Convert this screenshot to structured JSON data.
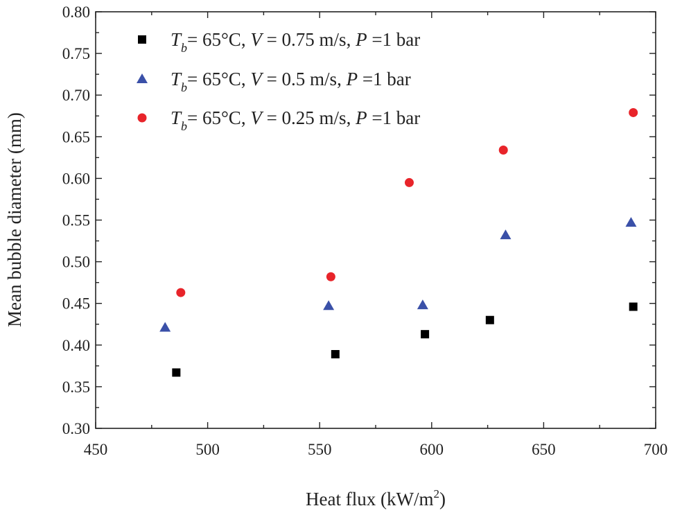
{
  "chart_data": {
    "type": "scatter",
    "xlabel": "Heat flux (kW/m",
    "xlabel_sup": "2",
    "xlabel_close": ")",
    "ylabel": "Mean bubble diameter (mm)",
    "xlim": [
      450,
      700
    ],
    "ylim": [
      0.3,
      0.8
    ],
    "x_ticks": [
      450,
      500,
      550,
      600,
      650,
      700
    ],
    "x_tick_labels": [
      "450",
      "500",
      "550",
      "600",
      "650",
      "700"
    ],
    "y_ticks": [
      0.3,
      0.35,
      0.4,
      0.45,
      0.5,
      0.55,
      0.6,
      0.65,
      0.7,
      0.75,
      0.8
    ],
    "y_tick_labels": [
      "0.30",
      "0.35",
      "0.40",
      "0.45",
      "0.50",
      "0.55",
      "0.60",
      "0.65",
      "0.70",
      "0.75",
      "0.80"
    ],
    "legend_position": "top-left",
    "series": [
      {
        "name": "T_b = 65°C, V = 0.75 m/s, P = 1 bar",
        "legend": {
          "var1": "T",
          "sub": "b",
          "part1": "= 65°C, ",
          "var2": "V",
          "part2": " = 0.75 m/s, ",
          "var3": "P",
          "part3": " =1 bar"
        },
        "marker": "square",
        "color": "#000000",
        "points": [
          [
            486,
            0.367
          ],
          [
            557,
            0.389
          ],
          [
            597,
            0.413
          ],
          [
            626,
            0.43
          ],
          [
            690,
            0.446
          ]
        ]
      },
      {
        "name": "T_b = 65°C, V = 0.5 m/s, P = 1 bar",
        "legend": {
          "var1": "T",
          "sub": "b",
          "part1": "= 65°C, ",
          "var2": "V",
          "part2": " = 0.5 m/s, ",
          "var3": "P",
          "part3": " =1 bar"
        },
        "marker": "triangle",
        "color": "#3a50a8",
        "points": [
          [
            481,
            0.421
          ],
          [
            554,
            0.447
          ],
          [
            596,
            0.448
          ],
          [
            633,
            0.532
          ],
          [
            689,
            0.547
          ]
        ]
      },
      {
        "name": "T_b = 65°C, V = 0.25 m/s, P = 1 bar",
        "legend": {
          "var1": "T",
          "sub": "b",
          "part1": "= 65°C, ",
          "var2": "V",
          "part2": " = 0.25 m/s, ",
          "var3": "P",
          "part3": " =1 bar"
        },
        "marker": "circle",
        "color": "#e8242a",
        "points": [
          [
            488,
            0.463
          ],
          [
            555,
            0.482
          ],
          [
            590,
            0.595
          ],
          [
            632,
            0.634
          ],
          [
            690,
            0.679
          ]
        ]
      }
    ]
  }
}
